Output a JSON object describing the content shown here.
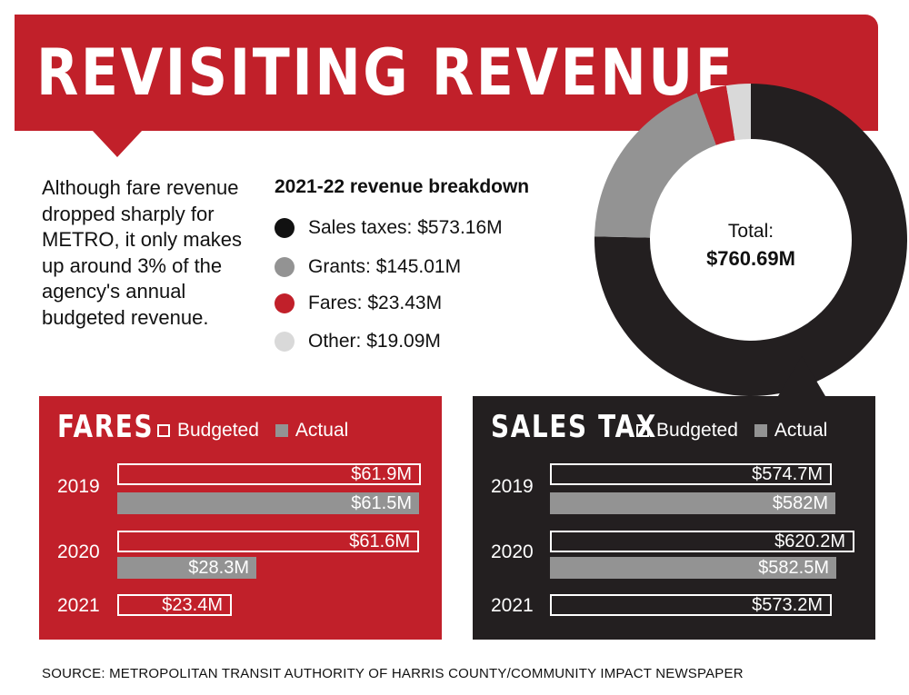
{
  "title": "REVISITING REVENUE",
  "intro": "Although fare revenue dropped sharply for METRO, it only makes up around 3% of the agency's annual budgeted revenue.",
  "breakdown": {
    "title": "2021-22 revenue breakdown",
    "items": [
      {
        "label": "Sales taxes: $573.16M",
        "color": "#111111"
      },
      {
        "label": "Grants: $145.01M",
        "color": "#939393"
      },
      {
        "label": "Fares: $23.43M",
        "color": "#c1202a"
      },
      {
        "label": "Other: $19.09M",
        "color": "#d9d9d9"
      }
    ],
    "total_label": "Total:",
    "total_value": "$760.69M"
  },
  "fares_panel": {
    "title": "FARES",
    "legend_budgeted": "Budgeted",
    "legend_actual": "Actual",
    "rows": [
      {
        "year": "2019",
        "budgeted_label": "$61.9M",
        "actual_label": "$61.5M"
      },
      {
        "year": "2020",
        "budgeted_label": "$61.6M",
        "actual_label": "$28.3M"
      },
      {
        "year": "2021",
        "budgeted_label": "$23.4M",
        "actual_label": null
      }
    ]
  },
  "salestax_panel": {
    "title": "SALES TAX",
    "legend_budgeted": "Budgeted",
    "legend_actual": "Actual",
    "rows": [
      {
        "year": "2019",
        "budgeted_label": "$574.7M",
        "actual_label": "$582M"
      },
      {
        "year": "2020",
        "budgeted_label": "$620.2M",
        "actual_label": "$582.5M"
      },
      {
        "year": "2021",
        "budgeted_label": "$573.2M",
        "actual_label": null
      }
    ]
  },
  "source": "SOURCE: METROPOLITAN TRANSIT AUTHORITY OF HARRIS COUNTY/COMMUNITY IMPACT NEWSPAPER",
  "colors": {
    "brand_red": "#c1202a",
    "dark": "#231f20",
    "gray": "#939393",
    "light_gray": "#d9d9d9"
  },
  "chart_data": [
    {
      "type": "pie",
      "title": "2021-22 revenue breakdown",
      "categories": [
        "Sales taxes",
        "Grants",
        "Fares",
        "Other"
      ],
      "values": [
        573.16,
        145.01,
        23.43,
        19.09
      ],
      "colors": [
        "#231f20",
        "#939393",
        "#c1202a",
        "#d9d9d9"
      ],
      "total": 760.69
    },
    {
      "type": "bar",
      "title": "FARES",
      "categories": [
        "2019",
        "2020",
        "2021"
      ],
      "series": [
        {
          "name": "Budgeted",
          "values": [
            61.9,
            61.6,
            23.4
          ]
        },
        {
          "name": "Actual",
          "values": [
            61.5,
            28.3,
            null
          ]
        }
      ],
      "max": 61.9
    },
    {
      "type": "bar",
      "title": "SALES TAX",
      "categories": [
        "2019",
        "2020",
        "2021"
      ],
      "series": [
        {
          "name": "Budgeted",
          "values": [
            574.7,
            620.2,
            573.2
          ]
        },
        {
          "name": "Actual",
          "values": [
            582,
            582.5,
            null
          ]
        }
      ],
      "max": 620.2
    }
  ]
}
